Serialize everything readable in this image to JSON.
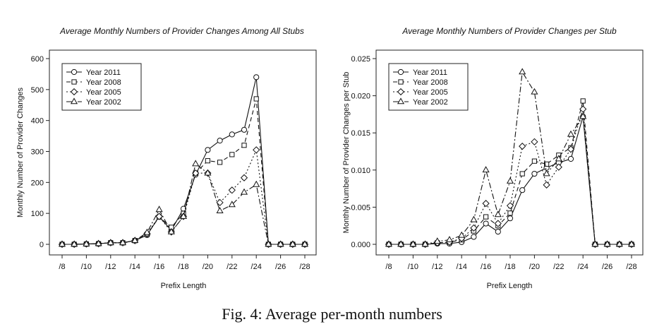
{
  "caption": "Fig. 4: Average per-month numbers",
  "chart_data": [
    {
      "type": "line",
      "title": "Average Monthly Numbers of Provider Changes Among All Stubs",
      "xlabel": "Prefix Length",
      "ylabel": "Monthly Number of Provider Changes",
      "x": [
        8,
        9,
        10,
        11,
        12,
        13,
        14,
        15,
        16,
        17,
        18,
        19,
        20,
        21,
        22,
        23,
        24,
        25,
        26,
        27,
        28
      ],
      "xtick_labels": [
        "/8",
        "/10",
        "/12",
        "/14",
        "/16",
        "/18",
        "/20",
        "/22",
        "/24",
        "/26",
        "/28"
      ],
      "xtick_values": [
        8,
        10,
        12,
        14,
        16,
        18,
        20,
        22,
        24,
        26,
        28
      ],
      "yticks": [
        0,
        100,
        200,
        300,
        400,
        500,
        600
      ],
      "ytick_labels": [
        "0",
        "100",
        "200",
        "300",
        "400",
        "500",
        "600"
      ],
      "xlim": [
        8,
        28
      ],
      "ylim": [
        0,
        600
      ],
      "legend_position": "top-left",
      "series": [
        {
          "name": "Year 2011",
          "marker": "circle",
          "dash": "",
          "values": [
            0,
            0,
            1,
            2,
            5,
            5,
            12,
            30,
            90,
            45,
            115,
            225,
            305,
            335,
            355,
            370,
            540,
            0,
            0,
            0,
            0
          ]
        },
        {
          "name": "Year 2008",
          "marker": "square",
          "dash": "6,4",
          "values": [
            0,
            0,
            1,
            2,
            5,
            5,
            12,
            32,
            88,
            55,
            100,
            230,
            270,
            265,
            290,
            320,
            470,
            0,
            0,
            0,
            0
          ]
        },
        {
          "name": "Year 2005",
          "marker": "diamond",
          "dash": "2,3",
          "values": [
            0,
            0,
            1,
            2,
            5,
            5,
            12,
            35,
            90,
            40,
            90,
            230,
            230,
            135,
            175,
            215,
            305,
            0,
            0,
            0,
            0
          ]
        },
        {
          "name": "Year 2002",
          "marker": "triangle",
          "dash": "8,3,2,3",
          "values": [
            0,
            0,
            1,
            2,
            5,
            5,
            12,
            38,
            112,
            40,
            90,
            260,
            230,
            108,
            128,
            168,
            193,
            0,
            0,
            0,
            0
          ]
        }
      ]
    },
    {
      "type": "line",
      "title": "Average Monthly Numbers of Provider Changes per Stub",
      "xlabel": "Prefix Length",
      "ylabel": "Monthly Number of Provider Changes per Stub",
      "x": [
        8,
        9,
        10,
        11,
        12,
        13,
        14,
        15,
        16,
        17,
        18,
        19,
        20,
        21,
        22,
        23,
        24,
        25,
        26,
        27,
        28
      ],
      "xtick_labels": [
        "/8",
        "/10",
        "/12",
        "/14",
        "/16",
        "/18",
        "/20",
        "/22",
        "/24",
        "/26",
        "/28"
      ],
      "xtick_values": [
        8,
        10,
        12,
        14,
        16,
        18,
        20,
        22,
        24,
        26,
        28
      ],
      "yticks": [
        0,
        0.005,
        0.01,
        0.015,
        0.02,
        0.025
      ],
      "ytick_labels": [
        "0.000",
        "0.005",
        "0.010",
        "0.015",
        "0.020",
        "0.025"
      ],
      "xlim": [
        8,
        28
      ],
      "ylim": [
        0,
        0.025
      ],
      "legend_position": "top-left",
      "series": [
        {
          "name": "Year 2011",
          "marker": "circle",
          "dash": "",
          "values": [
            0,
            0,
            0,
            0,
            0.0001,
            0.0001,
            0.0003,
            0.001,
            0.0028,
            0.0017,
            0.0035,
            0.0073,
            0.0095,
            0.0103,
            0.011,
            0.0115,
            0.0172,
            0,
            0,
            0,
            0
          ]
        },
        {
          "name": "Year 2008",
          "marker": "square",
          "dash": "6,4",
          "values": [
            0,
            0,
            0,
            0,
            0.0002,
            0.0003,
            0.0006,
            0.0018,
            0.0037,
            0.0025,
            0.0042,
            0.0095,
            0.0112,
            0.0108,
            0.012,
            0.013,
            0.0193,
            0,
            0,
            0,
            0
          ]
        },
        {
          "name": "Year 2005",
          "marker": "diamond",
          "dash": "2,3",
          "values": [
            0,
            0,
            0,
            0,
            0.0002,
            0.0003,
            0.0008,
            0.0022,
            0.0055,
            0.0028,
            0.0052,
            0.0132,
            0.0138,
            0.008,
            0.0104,
            0.0128,
            0.0182,
            0,
            0,
            0,
            0
          ]
        },
        {
          "name": "Year 2002",
          "marker": "triangle",
          "dash": "8,3,2,3",
          "values": [
            0,
            0,
            0,
            0,
            0.0004,
            0.0006,
            0.0012,
            0.0033,
            0.01,
            0.004,
            0.0085,
            0.0232,
            0.0205,
            0.0095,
            0.0115,
            0.0148,
            0.0172,
            0,
            0,
            0,
            0
          ]
        }
      ]
    }
  ]
}
